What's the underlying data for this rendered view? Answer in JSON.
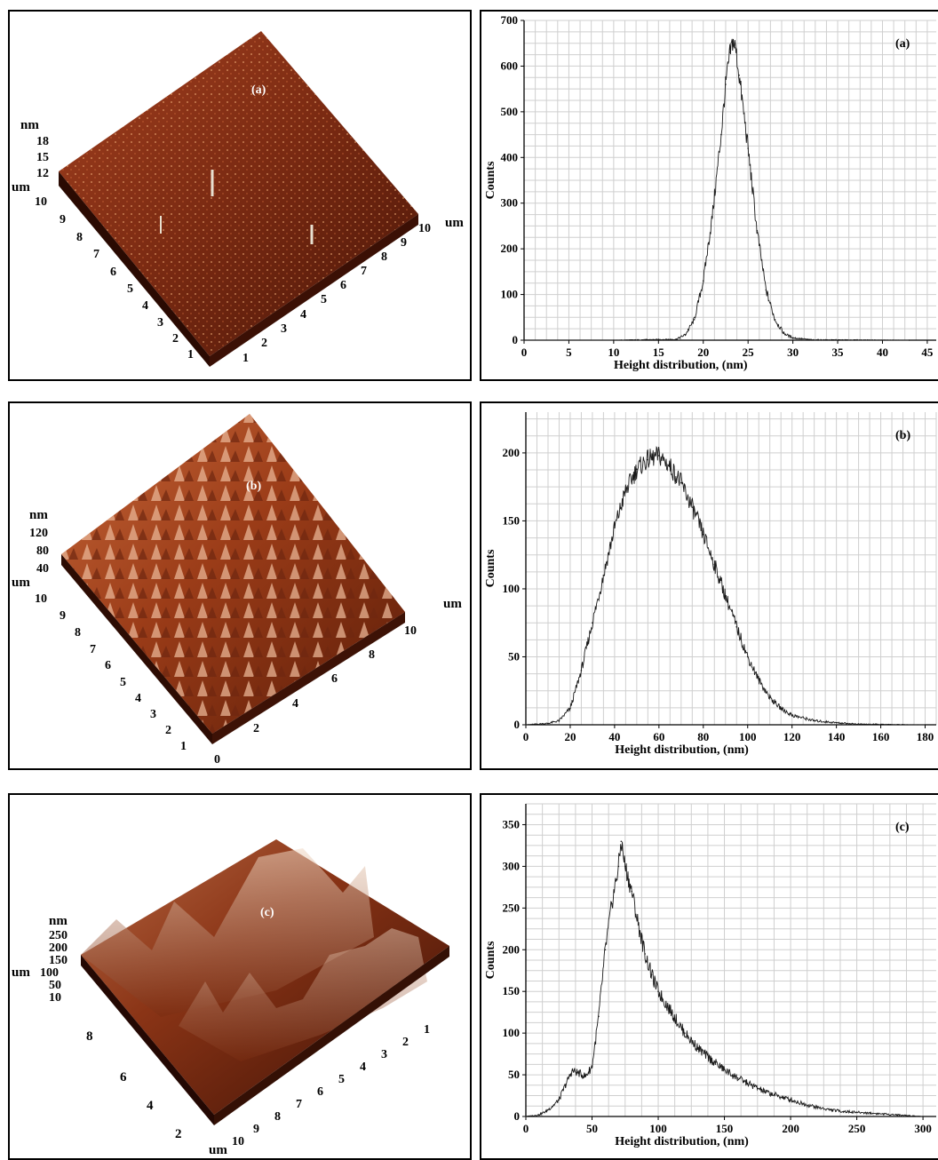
{
  "afm_panels": [
    {
      "tag": "(a)",
      "z_unit": "nm",
      "z_ticks": [
        "18",
        "15",
        "12"
      ],
      "xy_unit": "um",
      "left_axis_ticks": [
        "10",
        "9",
        "8",
        "7",
        "6",
        "5",
        "4",
        "3",
        "2",
        "1"
      ],
      "right_axis_ticks": [
        "1",
        "2",
        "3",
        "4",
        "5",
        "6",
        "7",
        "8",
        "9",
        "10"
      ],
      "right_unit": "um"
    },
    {
      "tag": "(b)",
      "z_unit": "nm",
      "z_ticks": [
        "120",
        "80",
        "40"
      ],
      "xy_unit": "um",
      "left_axis_ticks": [
        "10",
        "9",
        "8",
        "7",
        "6",
        "5",
        "4",
        "3",
        "2",
        "1"
      ],
      "right_axis_ticks": [
        "0",
        "2",
        "4",
        "6",
        "8",
        "10"
      ],
      "right_unit": "um"
    },
    {
      "tag": "(c)",
      "z_unit": "nm",
      "z_ticks": [
        "250",
        "200",
        "150",
        "100",
        "50",
        "10"
      ],
      "xy_unit": "um",
      "left_axis_ticks": [
        "8",
        "6",
        "4",
        "2"
      ],
      "right_axis_ticks": [
        "10",
        "9",
        "8",
        "7",
        "6",
        "5",
        "4",
        "3",
        "2",
        "1"
      ],
      "right_unit": "um"
    }
  ],
  "chart_data": [
    {
      "type": "line",
      "tag": "(a)",
      "xlabel": "Height distribution, (nm)",
      "ylabel": "Counts",
      "xlim": [
        0,
        46
      ],
      "ylim": [
        0,
        700
      ],
      "xticks": [
        0,
        5,
        10,
        15,
        20,
        25,
        30,
        35,
        40,
        45
      ],
      "yticks": [
        0,
        100,
        200,
        300,
        400,
        500,
        600,
        700
      ],
      "grid": true,
      "color": "#1a1a1a",
      "x": [
        0,
        10,
        17,
        18,
        19,
        20,
        21,
        22,
        22.5,
        23,
        23.3,
        23.6,
        24,
        25,
        26,
        27,
        28,
        29,
        30,
        32,
        43
      ],
      "values": [
        0,
        0,
        2,
        12,
        45,
        130,
        270,
        450,
        560,
        630,
        655,
        640,
        580,
        420,
        240,
        110,
        45,
        15,
        5,
        1,
        0
      ]
    },
    {
      "type": "line",
      "tag": "(b)",
      "xlabel": "Height distribution, (nm)",
      "ylabel": "Counts",
      "xlim": [
        0,
        185
      ],
      "ylim": [
        0,
        230
      ],
      "xticks": [
        0,
        20,
        40,
        60,
        80,
        100,
        120,
        140,
        160,
        180
      ],
      "yticks": [
        0,
        50,
        100,
        150,
        200
      ],
      "grid": true,
      "color": "#1a1a1a",
      "x": [
        0,
        10,
        15,
        20,
        25,
        30,
        35,
        40,
        45,
        50,
        55,
        60,
        65,
        70,
        75,
        80,
        85,
        90,
        95,
        100,
        105,
        110,
        115,
        120,
        130,
        140,
        150,
        160,
        170,
        180
      ],
      "values": [
        0,
        1,
        3,
        12,
        40,
        75,
        110,
        145,
        172,
        188,
        195,
        198,
        190,
        178,
        160,
        140,
        118,
        95,
        72,
        50,
        33,
        20,
        12,
        7,
        3,
        1.5,
        0.5,
        0.3,
        0.1,
        0
      ]
    },
    {
      "type": "line",
      "tag": "(c)",
      "xlabel": "Height distribution, (nm)",
      "ylabel": "Counts",
      "xlim": [
        0,
        310
      ],
      "ylim": [
        0,
        375
      ],
      "xticks": [
        0,
        50,
        100,
        150,
        200,
        250,
        300
      ],
      "yticks": [
        0,
        50,
        100,
        150,
        200,
        250,
        300,
        350
      ],
      "grid": true,
      "color": "#1a1a1a",
      "x": [
        0,
        10,
        15,
        20,
        25,
        30,
        35,
        40,
        45,
        50,
        55,
        60,
        65,
        70,
        72,
        75,
        80,
        85,
        90,
        95,
        100,
        110,
        120,
        130,
        140,
        150,
        160,
        170,
        180,
        190,
        200,
        210,
        220,
        230,
        240,
        250,
        260,
        270,
        280,
        290,
        300
      ],
      "values": [
        0,
        2,
        6,
        12,
        20,
        38,
        55,
        52,
        48,
        60,
        120,
        200,
        255,
        300,
        330,
        300,
        270,
        230,
        195,
        170,
        150,
        125,
        100,
        82,
        68,
        56,
        46,
        38,
        30,
        25,
        20,
        15,
        11,
        8,
        6,
        5,
        4,
        3,
        2,
        1,
        0
      ]
    }
  ]
}
